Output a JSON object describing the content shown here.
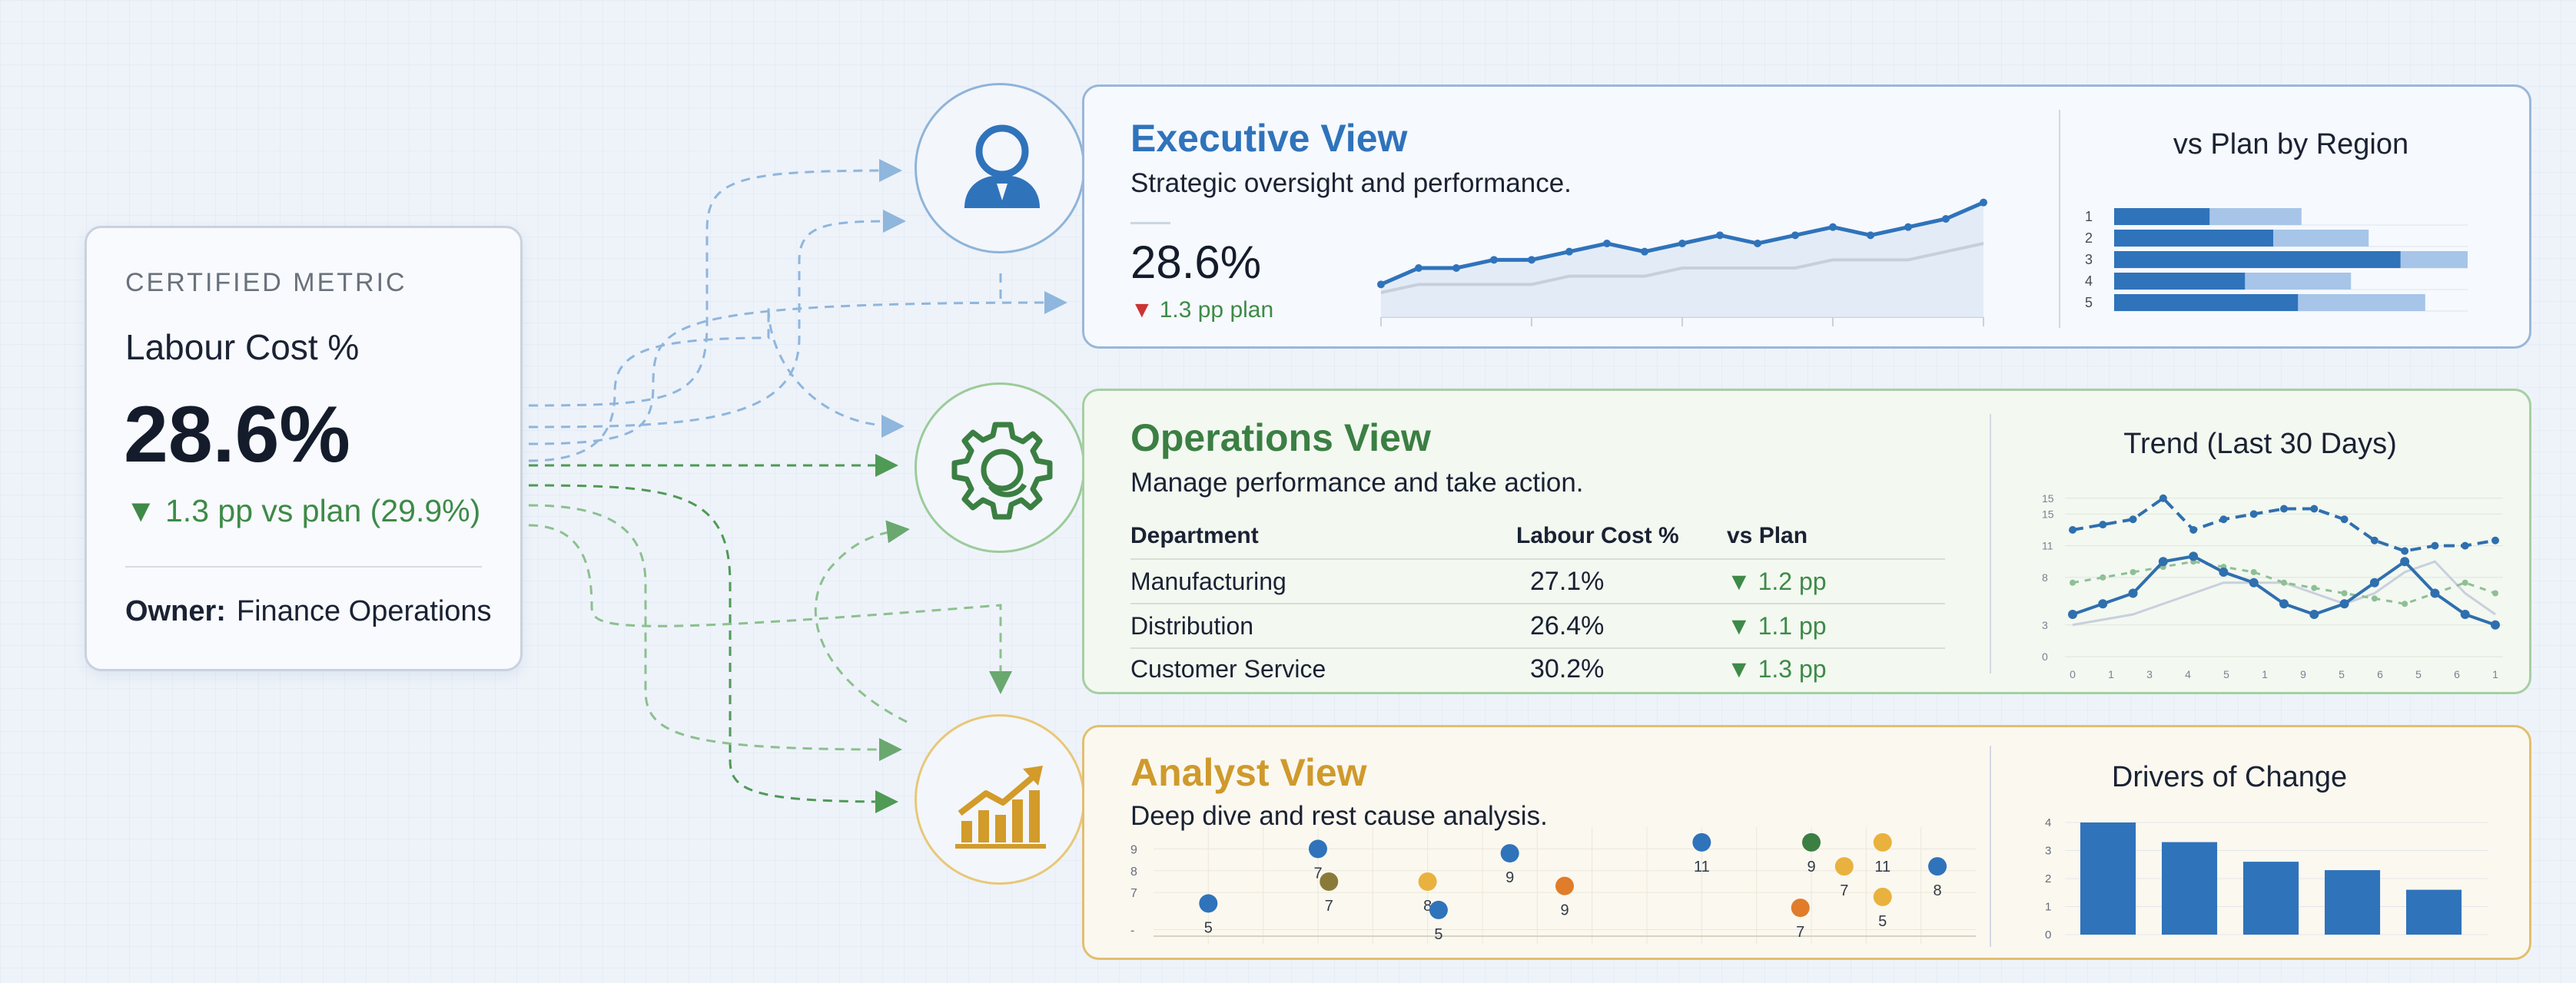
{
  "metric_card": {
    "eyebrow": "CERTIFIED METRIC",
    "name": "Labour Cost %",
    "value": "28.6%",
    "delta_arrow": "▼",
    "delta_text": "1.3 pp vs plan (29.9%)",
    "owner_label": "Owner:",
    "owner_value": "Finance Operations"
  },
  "connectors": {
    "blue": "#8fb6dc",
    "green": "#6aa870",
    "dark_green": "#4f9a55"
  },
  "executive": {
    "title": "Executive View",
    "subtitle": "Strategic oversight and performance.",
    "kpi_value": "28.6%",
    "kpi_arrow": "▼",
    "kpi_delta": "1.3 pp plan",
    "icon": "person-icon",
    "accent": "#2f73bb",
    "region_title": "vs Plan by Region"
  },
  "operations": {
    "title": "Operations View",
    "subtitle": "Manage performance and take action.",
    "icon": "gear-icon",
    "accent": "#3b7f43",
    "table": {
      "headers": [
        "Department",
        "Labour Cost %",
        "vs Plan"
      ],
      "rows": [
        {
          "department": "Manufacturing",
          "cost": "27.1%",
          "arrow": "▼",
          "vs_plan": "1.2 pp"
        },
        {
          "department": "Distribution",
          "cost": "26.4%",
          "arrow": "▼",
          "vs_plan": "1.1 pp"
        },
        {
          "department": "Customer Service",
          "cost": "30.2%",
          "arrow": "▼",
          "vs_plan": "1.3 pp"
        }
      ]
    },
    "trend_title": "Trend (Last 30 Days)"
  },
  "analyst": {
    "title": "Analyst View",
    "subtitle": "Deep dive and rest cause analysis.",
    "icon": "growth-chart-icon",
    "accent": "#cf9a2c",
    "drivers_title": "Drivers of Change"
  },
  "chart_data": [
    {
      "type": "line",
      "chart": "executive-sparkline",
      "series": [
        {
          "values": [
            4,
            6,
            6,
            7,
            7,
            8,
            9,
            8,
            9,
            10,
            9,
            10,
            11,
            10,
            11,
            12,
            14
          ]
        },
        {
          "values": [
            3,
            4,
            4,
            4,
            4,
            5,
            5,
            5,
            6,
            6,
            6,
            6,
            7,
            7,
            7,
            8,
            9
          ]
        }
      ]
    },
    {
      "type": "bar",
      "chart": "vs-plan-by-region",
      "title": "vs Plan by Region",
      "categories": [
        "1",
        "2",
        "3",
        "4",
        "5"
      ],
      "series": [
        {
          "values": [
            27,
            45,
            81,
            37,
            52
          ]
        },
        {
          "values": [
            53,
            72,
            100,
            67,
            88
          ]
        }
      ],
      "xlim": [
        0,
        100
      ]
    },
    {
      "type": "line",
      "chart": "trend-last-30-days",
      "title": "Trend (Last 30 Days)",
      "yticks": [
        "15",
        "15",
        "11",
        "8",
        "3",
        "0"
      ],
      "xticks": [
        "0",
        "1",
        "3",
        "4",
        "5",
        "1",
        "9",
        "5",
        "6",
        "5",
        "6",
        "1"
      ],
      "series": [
        {
          "values": [
            12,
            12.5,
            13,
            15,
            12,
            13,
            13.5,
            14,
            14,
            13,
            11,
            10,
            10.5,
            10.5,
            11
          ]
        },
        {
          "values": [
            7,
            7.5,
            8,
            8.5,
            9,
            8.5,
            8,
            7,
            6.5,
            6,
            5.5,
            5,
            6,
            7,
            6
          ]
        },
        {
          "values": [
            4,
            5,
            6,
            9,
            9.5,
            8,
            7,
            5,
            4,
            5,
            7,
            9,
            6,
            4,
            3
          ]
        },
        {
          "values": [
            3,
            3.5,
            4,
            5,
            6,
            7,
            7,
            7,
            6,
            5,
            6,
            8,
            9,
            6,
            4
          ]
        }
      ],
      "ylim": [
        0,
        16
      ]
    },
    {
      "type": "scatter",
      "chart": "analyst-scatter",
      "yticks": [
        "9",
        "8",
        "7",
        "-"
      ],
      "points": [
        {
          "x": 1,
          "y": 6.5,
          "label": "5",
          "color": "#2f73bb"
        },
        {
          "x": 3,
          "y": 9,
          "label": "7",
          "color": "#2f73bb"
        },
        {
          "x": 3.2,
          "y": 7.5,
          "label": "7",
          "color": "#8a7a3a"
        },
        {
          "x": 5,
          "y": 7.5,
          "label": "8",
          "color": "#e9b23f"
        },
        {
          "x": 5.2,
          "y": 6.2,
          "label": "5",
          "color": "#2f73bb"
        },
        {
          "x": 6.5,
          "y": 8.8,
          "label": "9",
          "color": "#2f73bb"
        },
        {
          "x": 7.5,
          "y": 7.3,
          "label": "9",
          "color": "#e07c2a"
        },
        {
          "x": 10,
          "y": 9.3,
          "label": "11",
          "color": "#2f73bb"
        },
        {
          "x": 11.8,
          "y": 6.3,
          "label": "7",
          "color": "#e07c2a"
        },
        {
          "x": 12,
          "y": 9.3,
          "label": "9",
          "color": "#3b7f43"
        },
        {
          "x": 12.6,
          "y": 8.2,
          "label": "7",
          "color": "#e9b23f"
        },
        {
          "x": 13.3,
          "y": 9.3,
          "label": "11",
          "color": "#e9b23f"
        },
        {
          "x": 13.3,
          "y": 6.8,
          "label": "5",
          "color": "#e9b23f"
        },
        {
          "x": 14.3,
          "y": 8.2,
          "label": "8",
          "color": "#2f73bb"
        }
      ],
      "xlim": [
        0,
        15
      ],
      "ylim": [
        5,
        10
      ]
    },
    {
      "type": "bar",
      "chart": "drivers-of-change",
      "title": "Drivers of Change",
      "yticks": [
        "4",
        "3",
        "2",
        "1",
        "0"
      ],
      "values": [
        4.0,
        3.3,
        2.6,
        2.3,
        1.6
      ],
      "ylim": [
        0,
        4.5
      ]
    }
  ]
}
